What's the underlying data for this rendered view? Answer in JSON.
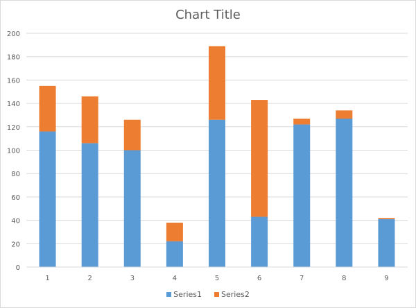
{
  "chart_data": {
    "type": "bar",
    "stacked": true,
    "title": "Chart Title",
    "xlabel": "",
    "ylabel": "",
    "categories": [
      "1",
      "2",
      "3",
      "4",
      "5",
      "6",
      "7",
      "8",
      "9"
    ],
    "series": [
      {
        "name": "Series1",
        "color": "#5b9bd5",
        "values": [
          116,
          106,
          100,
          22,
          126,
          43,
          122,
          127,
          41
        ]
      },
      {
        "name": "Series2",
        "color": "#ed7d31",
        "values": [
          39,
          40,
          26,
          16,
          63,
          100,
          5,
          7,
          1
        ]
      }
    ],
    "ylim": [
      0,
      200
    ],
    "yticks": [
      "0",
      "20",
      "40",
      "60",
      "80",
      "100",
      "120",
      "140",
      "160",
      "180",
      "200"
    ],
    "grid": true,
    "legend_position": "bottom"
  }
}
